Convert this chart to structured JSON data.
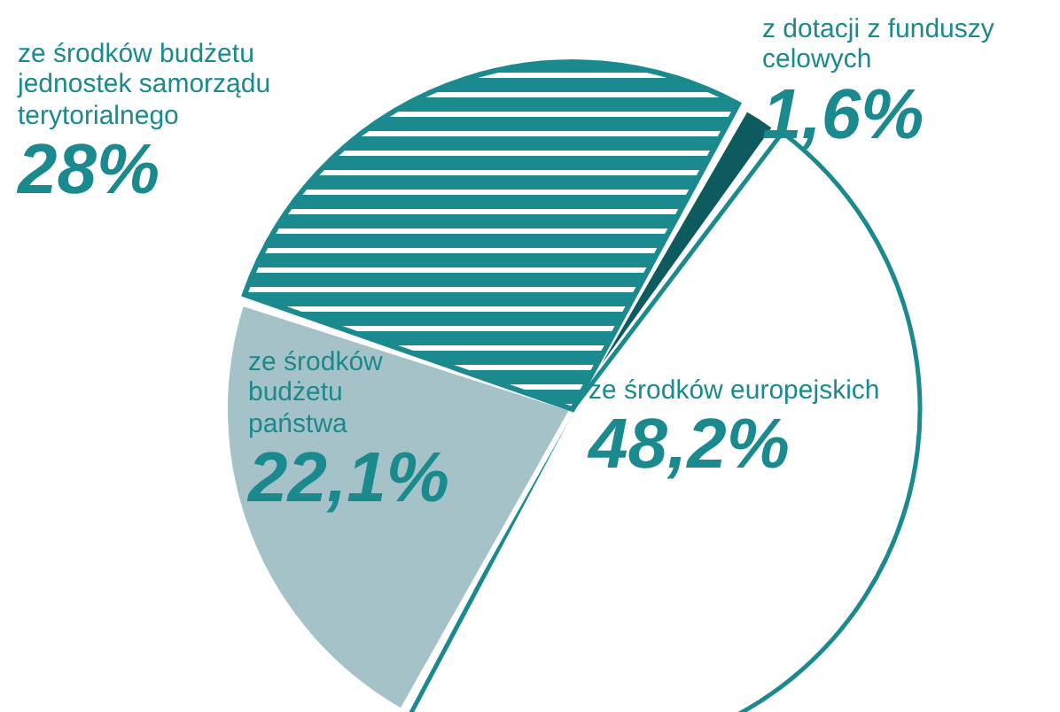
{
  "chart_data": {
    "type": "pie",
    "categories": [
      "z dotacji z funduszy celowych",
      "ze środków europejskich",
      "ze środków budżetu państwa",
      "ze środków budżetu jednostek samorządu terytorialnego"
    ],
    "values": [
      1.6,
      48.2,
      22.1,
      28
    ],
    "colors": [
      "#0d5b5f",
      "#ffffff",
      "#a4c2c7",
      "#1b8a8e"
    ],
    "value_labels": [
      "1,6%",
      "48,2%",
      "22,1%",
      "28%"
    ]
  }
}
